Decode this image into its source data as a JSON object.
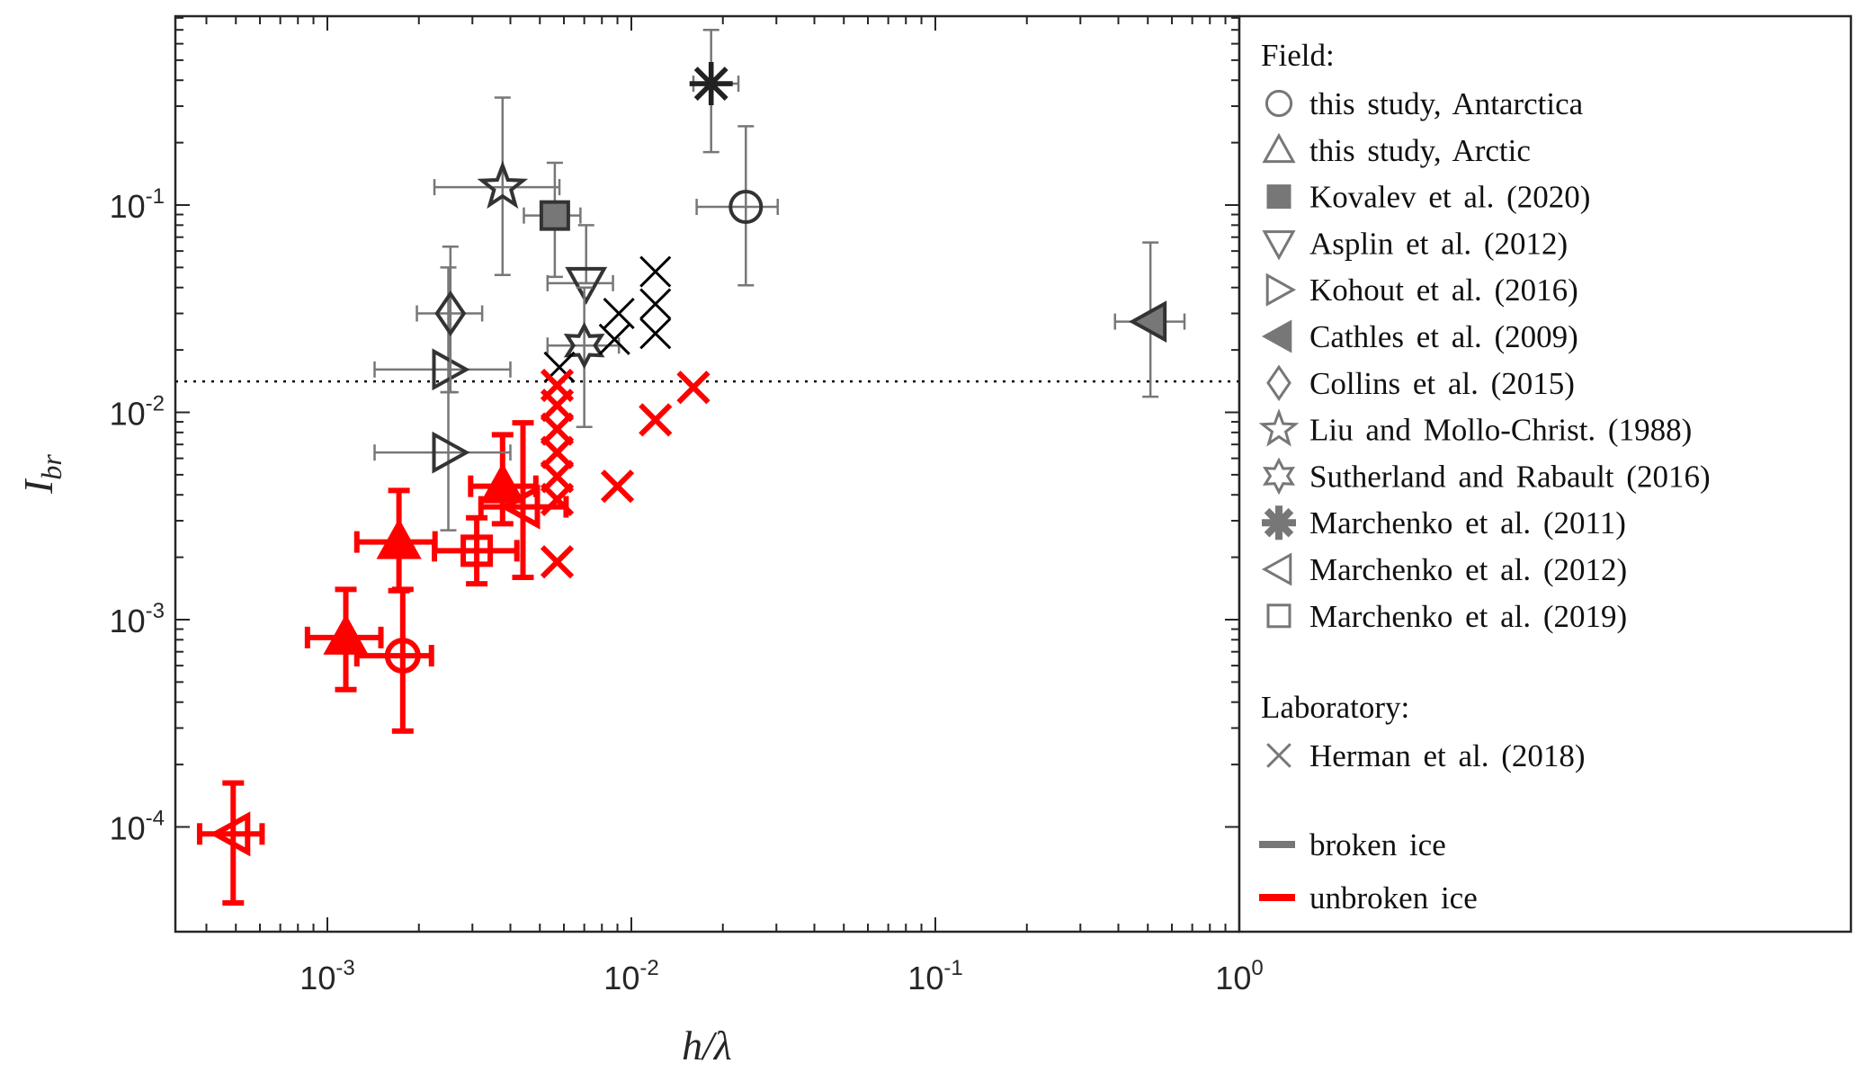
{
  "chart_data": {
    "type": "scatter",
    "title": "",
    "xlabel": "h/λ",
    "ylabel": "I",
    "ylabel_sub": "br",
    "xscale": "log",
    "yscale": "log",
    "xlim": [
      0.000316,
      1
    ],
    "ylim": [
      3.16e-05,
      0.82
    ],
    "xticks": [
      {
        "base": "10",
        "exp": "-3",
        "v": 0.001
      },
      {
        "base": "10",
        "exp": "-2",
        "v": 0.01
      },
      {
        "base": "10",
        "exp": "-1",
        "v": 0.1
      },
      {
        "base": "10",
        "exp": "0",
        "v": 1
      }
    ],
    "yticks": [
      {
        "base": "10",
        "exp": "-4",
        "v": 0.0001
      },
      {
        "base": "10",
        "exp": "-3",
        "v": 0.001
      },
      {
        "base": "10",
        "exp": "-2",
        "v": 0.01
      },
      {
        "base": "10",
        "exp": "-1",
        "v": 0.1
      }
    ],
    "threshold_line": 0.0141,
    "grid": false,
    "legend_position": "right-outside",
    "colors": {
      "broken": "#777777",
      "unbroken": "#ff0000",
      "marker_edge": "#333333",
      "lab_broken": "#000000"
    },
    "points": [
      {
        "series": "this study, Antarctica",
        "marker": "circle",
        "ice": "broken",
        "x": 0.0238,
        "y": 0.098,
        "xerr": [
          0.0164,
          0.0303
        ],
        "yerr": [
          0.041,
          0.24
        ]
      },
      {
        "series": "this study, Antarctica",
        "marker": "circle",
        "ice": "unbroken",
        "x": 0.00177,
        "y": 0.00067,
        "xerr": [
          0.00125,
          0.0022
        ],
        "yerr": [
          0.00029,
          0.0014
        ]
      },
      {
        "series": "this study, Arctic",
        "marker": "triangle-up",
        "filled": true,
        "ice": "unbroken",
        "x": 0.00115,
        "y": 0.00082,
        "xerr": [
          0.00086,
          0.0015
        ],
        "yerr": [
          0.00046,
          0.0014
        ]
      },
      {
        "series": "this study, Arctic",
        "marker": "triangle-up",
        "filled": true,
        "ice": "unbroken",
        "x": 0.00172,
        "y": 0.00237,
        "xerr": [
          0.00125,
          0.00226
        ],
        "yerr": [
          0.00138,
          0.0042
        ]
      },
      {
        "series": "this study, Arctic",
        "marker": "triangle-up",
        "filled": true,
        "ice": "unbroken",
        "x": 0.00377,
        "y": 0.0044,
        "xerr": [
          0.00296,
          0.00485
        ],
        "yerr": [
          0.0029,
          0.0078
        ]
      },
      {
        "series": "Kovalev et al. (2020)",
        "marker": "square",
        "filled": true,
        "ice": "broken",
        "x": 0.0056,
        "y": 0.089,
        "xerr": [
          0.00443,
          0.0068
        ],
        "yerr": [
          0.045,
          0.16
        ]
      },
      {
        "series": "Asplin et al. (2012)",
        "marker": "triangle-down",
        "ice": "broken",
        "x": 0.0071,
        "y": 0.042,
        "xerr": [
          0.0053,
          0.0087
        ],
        "yerr": [
          0.042,
          0.08
        ]
      },
      {
        "series": "Kohout et al. (2016)",
        "marker": "triangle-right",
        "ice": "broken",
        "x": 0.0025,
        "y": 0.0161,
        "xerr": [
          0.00143,
          0.004
        ],
        "yerr": [
          0.0125,
          0.05
        ]
      },
      {
        "series": "Kohout et al. (2016)",
        "marker": "triangle-right",
        "ice": "broken",
        "x": 0.0025,
        "y": 0.0064,
        "xerr": [
          0.00143,
          0.004
        ],
        "yerr": [
          0.0027,
          0.0125
        ]
      },
      {
        "series": "Cathles et al. (2009)",
        "marker": "triangle-left",
        "filled": true,
        "ice": "broken",
        "x": 0.51,
        "y": 0.0274,
        "xerr": [
          0.39,
          0.66
        ],
        "yerr": [
          0.0119,
          0.066
        ]
      },
      {
        "series": "Collins et al. (2015)",
        "marker": "diamond",
        "ice": "broken",
        "x": 0.00254,
        "y": 0.03,
        "xerr": [
          0.00197,
          0.00323
        ],
        "yerr": [
          0.0125,
          0.063
        ]
      },
      {
        "series": "Liu and Mollo-Christ. (1988)",
        "marker": "pentagram",
        "ice": "broken",
        "x": 0.00377,
        "y": 0.122,
        "xerr": [
          0.00225,
          0.0058
        ],
        "yerr": [
          0.046,
          0.33
        ]
      },
      {
        "series": "Sutherland and Rabault (2016)",
        "marker": "hexagram",
        "ice": "broken",
        "x": 0.007,
        "y": 0.021,
        "xerr": [
          0.0053,
          0.0091
        ],
        "yerr": [
          0.0085,
          0.04
        ]
      },
      {
        "series": "Marchenko et al. (2011)",
        "marker": "asterisk",
        "ice": "broken",
        "x": 0.0183,
        "y": 0.385,
        "xerr": [
          0.016,
          0.0225
        ],
        "yerr": [
          0.18,
          0.7
        ]
      },
      {
        "series": "Marchenko et al. (2012)",
        "marker": "triangle-left",
        "ice": "unbroken",
        "x": 0.00049,
        "y": 9.25e-05,
        "xerr": [
          0.00038,
          0.00061
        ],
        "yerr": [
          4.3e-05,
          0.000163
        ]
      },
      {
        "series": "Marchenko et al. (2012)",
        "marker": "triangle-left",
        "ice": "unbroken",
        "x": 0.0044,
        "y": 0.0035,
        "xerr": [
          0.0032,
          0.0061
        ],
        "yerr": [
          0.0016,
          0.0089
        ]
      },
      {
        "series": "Marchenko et al. (2019)",
        "marker": "square",
        "ice": "unbroken",
        "x": 0.0031,
        "y": 0.00215,
        "xerr": [
          0.00225,
          0.0042
        ],
        "yerr": [
          0.00149,
          0.0031
        ]
      },
      {
        "series": "Herman et al. (2018)",
        "marker": "x",
        "ice": "broken",
        "x": 0.0058,
        "y": 0.0165
      },
      {
        "series": "Herman et al. (2018)",
        "marker": "x",
        "ice": "broken",
        "x": 0.0091,
        "y": 0.03
      },
      {
        "series": "Herman et al. (2018)",
        "marker": "x",
        "ice": "broken",
        "x": 0.0088,
        "y": 0.0225
      },
      {
        "series": "Herman et al. (2018)",
        "marker": "x",
        "ice": "broken",
        "x": 0.012,
        "y": 0.0477
      },
      {
        "series": "Herman et al. (2018)",
        "marker": "x",
        "ice": "broken",
        "x": 0.012,
        "y": 0.0333
      },
      {
        "series": "Herman et al. (2018)",
        "marker": "x",
        "ice": "broken",
        "x": 0.012,
        "y": 0.024
      },
      {
        "series": "Herman et al. (2018)",
        "marker": "x",
        "ice": "unbroken",
        "x": 0.0057,
        "y": 0.0135
      },
      {
        "series": "Herman et al. (2018)",
        "marker": "x",
        "ice": "unbroken",
        "x": 0.0057,
        "y": 0.0108
      },
      {
        "series": "Herman et al. (2018)",
        "marker": "x",
        "ice": "unbroken",
        "x": 0.0057,
        "y": 0.0083
      },
      {
        "series": "Herman et al. (2018)",
        "marker": "x",
        "ice": "unbroken",
        "x": 0.0057,
        "y": 0.0064
      },
      {
        "series": "Herman et al. (2018)",
        "marker": "x",
        "ice": "unbroken",
        "x": 0.0057,
        "y": 0.0049
      },
      {
        "series": "Herman et al. (2018)",
        "marker": "x",
        "ice": "unbroken",
        "x": 0.0057,
        "y": 0.0038
      },
      {
        "series": "Herman et al. (2018)",
        "marker": "x",
        "ice": "unbroken",
        "x": 0.0057,
        "y": 0.0019
      },
      {
        "series": "Herman et al. (2018)",
        "marker": "x",
        "ice": "unbroken",
        "x": 0.009,
        "y": 0.0044
      },
      {
        "series": "Herman et al. (2018)",
        "marker": "x",
        "ice": "unbroken",
        "x": 0.012,
        "y": 0.0092
      },
      {
        "series": "Herman et al. (2018)",
        "marker": "x",
        "ice": "unbroken",
        "x": 0.016,
        "y": 0.0132
      }
    ],
    "legend": {
      "field_title": "Field:",
      "field_entries": [
        {
          "label": "this study, Antarctica",
          "marker": "circle"
        },
        {
          "label": "this study, Arctic",
          "marker": "triangle-up"
        },
        {
          "label": "Kovalev et al. (2020)",
          "marker": "square",
          "filled": true
        },
        {
          "label": "Asplin et al. (2012)",
          "marker": "triangle-down"
        },
        {
          "label": "Kohout et al. (2016)",
          "marker": "triangle-right"
        },
        {
          "label": "Cathles et al. (2009)",
          "marker": "triangle-left",
          "filled": true
        },
        {
          "label": "Collins et al. (2015)",
          "marker": "diamond"
        },
        {
          "label": "Liu and Mollo-Christ. (1988)",
          "marker": "pentagram"
        },
        {
          "label": "Sutherland and Rabault (2016)",
          "marker": "hexagram"
        },
        {
          "label": "Marchenko et al. (2011)",
          "marker": "asterisk"
        },
        {
          "label": "Marchenko et al. (2012)",
          "marker": "triangle-left"
        },
        {
          "label": "Marchenko et al. (2019)",
          "marker": "square"
        }
      ],
      "lab_title": "Laboratory:",
      "lab_entries": [
        {
          "label": "Herman et al. (2018)",
          "marker": "x"
        }
      ],
      "line_entries": [
        {
          "label": "broken ice",
          "ice": "broken"
        },
        {
          "label": "unbroken ice",
          "ice": "unbroken"
        }
      ]
    }
  }
}
